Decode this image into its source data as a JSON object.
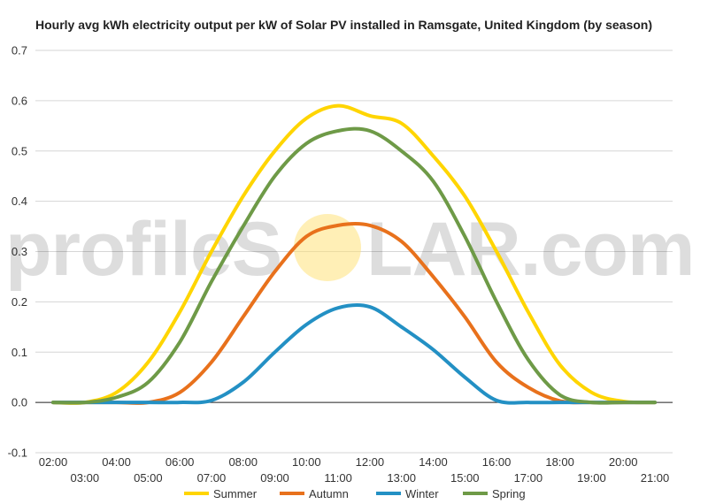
{
  "chart_data": {
    "type": "line",
    "title": "Hourly avg kWh electricity output per kW of Solar PV installed in Ramsgate, United Kingdom (by season)",
    "xlabel": "",
    "ylabel": "",
    "ylim": [
      -0.1,
      0.7
    ],
    "yticks": [
      "0.7",
      "0.6",
      "0.5",
      "0.4",
      "0.3",
      "0.2",
      "0.1",
      "0.0",
      "-0.1"
    ],
    "xlim": [
      2,
      21
    ],
    "xticks_upper": [
      "02:00",
      "04:00",
      "06:00",
      "08:00",
      "10:00",
      "12:00",
      "14:00",
      "16:00",
      "18:00",
      "20:00"
    ],
    "xticks_lower": [
      "03:00",
      "05:00",
      "07:00",
      "09:00",
      "11:00",
      "13:00",
      "15:00",
      "17:00",
      "19:00",
      "21:00"
    ],
    "grid": true,
    "legend_position": "bottom",
    "x": [
      2,
      3,
      4,
      5,
      6,
      7,
      8,
      9,
      10,
      11,
      12,
      13,
      14,
      15,
      16,
      17,
      18,
      19,
      20,
      21
    ],
    "series": [
      {
        "name": "Summer",
        "color": "#FFD500",
        "values": [
          0.0,
          0.0,
          0.02,
          0.08,
          0.18,
          0.3,
          0.41,
          0.5,
          0.565,
          0.59,
          0.57,
          0.555,
          0.49,
          0.41,
          0.3,
          0.18,
          0.075,
          0.02,
          0.002,
          0.0
        ]
      },
      {
        "name": "Autumn",
        "color": "#E8711C",
        "values": [
          0.0,
          0.0,
          0.0,
          0.0,
          0.02,
          0.08,
          0.17,
          0.26,
          0.33,
          0.352,
          0.352,
          0.32,
          0.25,
          0.17,
          0.08,
          0.03,
          0.003,
          0.0,
          0.0,
          0.0
        ]
      },
      {
        "name": "Winter",
        "color": "#2390C4",
        "values": [
          0.0,
          0.0,
          0.0,
          0.0,
          0.0,
          0.004,
          0.04,
          0.1,
          0.155,
          0.188,
          0.19,
          0.15,
          0.105,
          0.05,
          0.004,
          0.0,
          0.0,
          0.0,
          0.0,
          0.0
        ]
      },
      {
        "name": "Spring",
        "color": "#6E9A47",
        "values": [
          0.0,
          0.0,
          0.01,
          0.04,
          0.12,
          0.24,
          0.35,
          0.45,
          0.515,
          0.54,
          0.54,
          0.5,
          0.44,
          0.33,
          0.2,
          0.085,
          0.015,
          0.0,
          0.0,
          0.0
        ]
      }
    ]
  },
  "watermark": {
    "left": "profileS",
    "right": "LAR.com",
    "sun_color": "#FFE27A"
  }
}
